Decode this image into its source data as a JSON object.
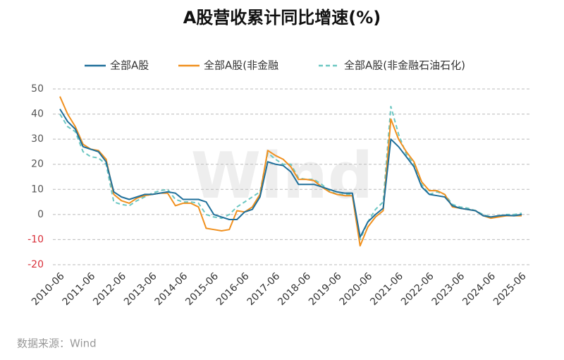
{
  "chart_data": {
    "type": "line",
    "title": "A股营收累计同比增速(%)",
    "source": "数据来源：Wind",
    "watermark": "Wind",
    "categories": [
      "2010-06",
      null,
      null,
      null,
      "2011-06",
      null,
      null,
      null,
      "2012-06",
      null,
      null,
      null,
      "2013-06",
      null,
      null,
      null,
      "2014-06",
      null,
      null,
      null,
      "2015-06",
      null,
      null,
      null,
      "2016-06",
      null,
      null,
      null,
      "2017-06",
      null,
      null,
      null,
      "2018-06",
      null,
      null,
      null,
      "2019-06",
      null,
      null,
      null,
      "2020-06",
      null,
      null,
      null,
      "2021-06",
      null,
      null,
      null,
      "2022-06",
      null,
      null,
      null,
      "2023-06",
      null,
      null,
      null,
      "2024-06",
      null,
      null,
      null,
      "2025-06"
    ],
    "series": [
      {
        "name": "全部A股",
        "color": "#1f6f9a",
        "dashed": false,
        "values": [
          42,
          37,
          34,
          27,
          26,
          25,
          21,
          9,
          7,
          6,
          7,
          8,
          8,
          8.5,
          9,
          8.5,
          6,
          6,
          6,
          5,
          0,
          -1,
          -2,
          -2,
          1,
          2,
          7,
          21,
          20,
          19.5,
          17,
          12,
          12,
          12,
          11,
          10,
          9,
          8.5,
          8.5,
          -9,
          -3,
          0,
          2.5,
          30,
          27,
          23,
          19,
          11,
          8,
          7.5,
          7,
          3.5,
          2.5,
          2,
          1.5,
          -0.5,
          -1,
          -0.5,
          -0.3,
          -0.5,
          0
        ]
      },
      {
        "name": "全部A股(非金融",
        "color": "#f0901e",
        "dashed": false,
        "values": [
          47,
          40,
          35,
          28,
          26,
          25.5,
          22,
          8,
          5.5,
          4.5,
          6.5,
          7.5,
          8,
          8.5,
          8.5,
          3.5,
          4.5,
          4.5,
          3,
          -5.5,
          -6,
          -6.5,
          -6,
          1.5,
          1,
          3,
          8,
          25.5,
          23.5,
          22,
          19,
          14,
          14,
          13.5,
          11,
          9,
          8,
          7.5,
          7.5,
          -12.5,
          -5,
          -1,
          1.5,
          38,
          30,
          25,
          21,
          13,
          9.5,
          9.5,
          8,
          3,
          2.5,
          2,
          1.5,
          -0.5,
          -1.5,
          -1,
          -0.5,
          -0.5,
          -0.5
        ]
      },
      {
        "name": "全部A股(非金融石油石化)",
        "color": "#6cc7c2",
        "dashed": true,
        "values": [
          40,
          35,
          33,
          25,
          23,
          22.5,
          20,
          5,
          4,
          3.5,
          5.5,
          7,
          8.5,
          9.5,
          10,
          6,
          5,
          5,
          4.5,
          0,
          -1,
          -1.5,
          0,
          3,
          5,
          7,
          9,
          24.5,
          22,
          20,
          20,
          14.5,
          14,
          14,
          12,
          9.5,
          8,
          8,
          8,
          -10,
          -3,
          2,
          5,
          43,
          32,
          24,
          20,
          12,
          8,
          9,
          8,
          4,
          3,
          2.5,
          1.5,
          0,
          -1,
          -0.5,
          0,
          0,
          0.5
        ]
      }
    ],
    "ylim": [
      -20,
      50
    ],
    "yticks": [
      -20,
      -10,
      0,
      10,
      20,
      30,
      40,
      50
    ],
    "grid": true,
    "legend": "top",
    "negative_tick_color": "#d9303a"
  }
}
